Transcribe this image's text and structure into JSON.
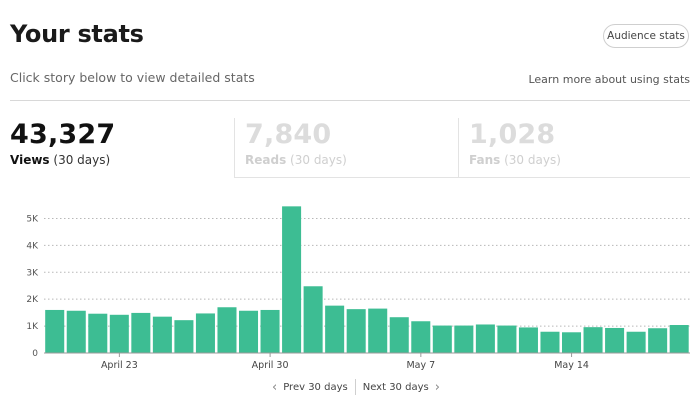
{
  "header": {
    "title": "Your stats",
    "audience_button": "Audience stats",
    "subtitle": "Click story below to view detailed stats",
    "learn_link": "Learn more about using stats"
  },
  "tabs": [
    {
      "value": "43,327",
      "label": "Views",
      "period": "(30 days)",
      "active": true
    },
    {
      "value": "7,840",
      "label": "Reads",
      "period": "(30 days)",
      "active": false
    },
    {
      "value": "1,028",
      "label": "Fans",
      "period": "(30 days)",
      "active": false
    }
  ],
  "chart_data": {
    "type": "bar",
    "color": "#3dbd93",
    "y_ticks": [
      "0",
      "1K",
      "2K",
      "3K",
      "4K",
      "5K"
    ],
    "ylim": [
      0,
      5500
    ],
    "x_labels": [
      {
        "index": 3,
        "label": "April 23"
      },
      {
        "index": 10,
        "label": "April 30"
      },
      {
        "index": 17,
        "label": "May 7"
      },
      {
        "index": 24,
        "label": "May 14"
      }
    ],
    "values": [
      1600,
      1570,
      1460,
      1420,
      1490,
      1350,
      1220,
      1470,
      1700,
      1570,
      1600,
      5450,
      2480,
      1760,
      1630,
      1650,
      1330,
      1180,
      1020,
      1020,
      1060,
      1020,
      950,
      790,
      770,
      960,
      930,
      790,
      920,
      1040
    ],
    "grid": true
  },
  "pager": {
    "prev": "Prev 30 days",
    "next": "Next 30 days"
  }
}
